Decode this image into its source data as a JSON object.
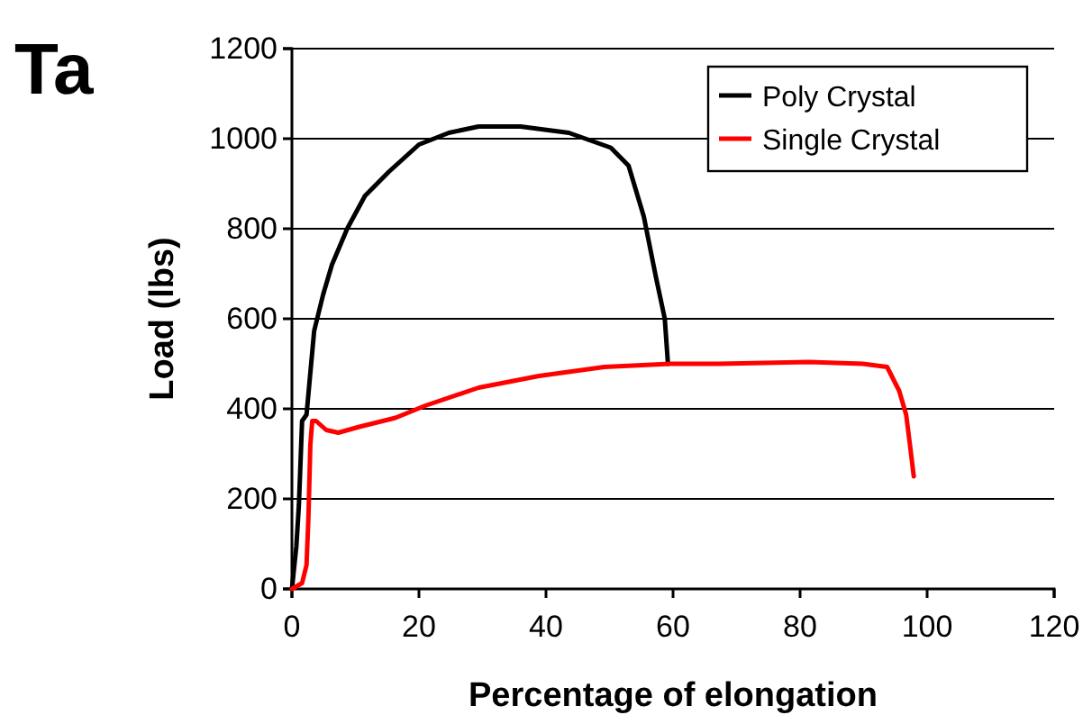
{
  "chart_data": {
    "type": "line",
    "xlabel": "Percentage of elongation",
    "ylabel": "Load (lbs)",
    "annotations": [
      "Ta"
    ],
    "xlim": [
      0,
      120
    ],
    "xticks": [
      0,
      20,
      40,
      60,
      80,
      100,
      120
    ],
    "ylim": [
      0,
      1200
    ],
    "yticks": [
      0,
      200,
      400,
      600,
      800,
      1000,
      1200
    ],
    "grid": "y",
    "legend": "top right",
    "line_style": "solid",
    "marker": "none",
    "series": [
      {
        "name": "Poly Crystal",
        "color": "#000000",
        "x": [
          0,
          0.7,
          1.1,
          1.6,
          2.3,
          3.5,
          4.9,
          6.3,
          8.7,
          11.5,
          15.3,
          20,
          24.7,
          29.4,
          36,
          43.6,
          50.2,
          53,
          55.4,
          57.3,
          58.7,
          59.2
        ],
        "values": [
          0,
          95,
          187,
          373,
          387,
          573,
          653,
          720,
          800,
          873,
          927,
          987,
          1013,
          1027,
          1027,
          1013,
          980,
          940,
          827,
          693,
          600,
          500
        ]
      },
      {
        "name": "Single Crystal",
        "color": "#ff0000",
        "x": [
          0,
          1.6,
          2.3,
          2.6,
          2.9,
          3.2,
          3.8,
          5.4,
          7.3,
          10.6,
          16.3,
          21,
          29.4,
          38.9,
          49.2,
          59.6,
          67.2,
          81.4,
          89.9,
          93.7,
          95.6,
          96.7,
          97.3,
          97.9
        ],
        "values": [
          0,
          13,
          53,
          160,
          320,
          373,
          373,
          353,
          347,
          360,
          380,
          407,
          447,
          473,
          493,
          500,
          500,
          504,
          500,
          493,
          440,
          387,
          320,
          250
        ]
      }
    ]
  }
}
